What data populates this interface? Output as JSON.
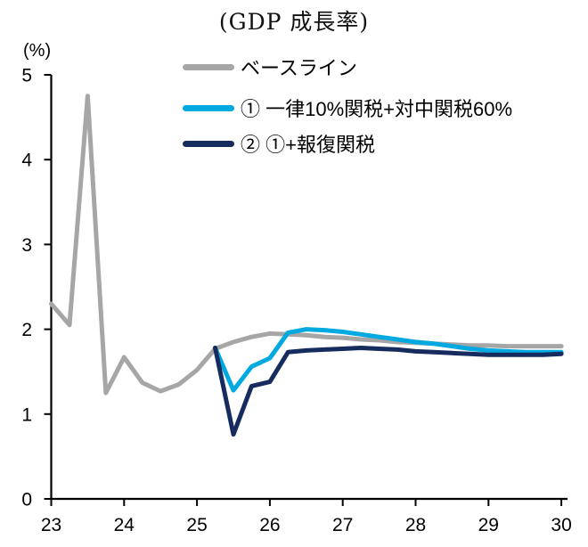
{
  "title": "(GDP 成長率)",
  "y_axis_unit": "(%)",
  "legend": [
    {
      "label": "ベースライン",
      "color": "#A6A6A6"
    },
    {
      "label": "① 一律10%関税+対中関税60%",
      "color": "#00A9E0"
    },
    {
      "label": "② ①+報復関税",
      "color": "#172C5E"
    }
  ],
  "chart_data": {
    "type": "line",
    "title": "(GDP 成長率)",
    "xlabel": "",
    "ylabel": "(%)",
    "xlim": [
      23,
      30
    ],
    "ylim": [
      0,
      5
    ],
    "x_ticks": [
      23,
      24,
      25,
      26,
      27,
      28,
      29,
      30
    ],
    "y_ticks": [
      0,
      1,
      2,
      3,
      4,
      5
    ],
    "grid": false,
    "legend_position": "top-inside",
    "series": [
      {
        "name": "ベースライン",
        "color": "#A6A6A6",
        "x": [
          23.0,
          23.25,
          23.5,
          23.75,
          24.0,
          24.25,
          24.5,
          24.75,
          25.0,
          25.25,
          25.5,
          25.75,
          26.0,
          26.25,
          26.5,
          26.75,
          27.0,
          27.25,
          27.5,
          27.75,
          28.0,
          28.25,
          28.5,
          28.75,
          29.0,
          29.25,
          29.5,
          29.75,
          30.0
        ],
        "values": [
          2.3,
          2.05,
          4.75,
          1.25,
          1.67,
          1.37,
          1.27,
          1.35,
          1.52,
          1.77,
          1.85,
          1.91,
          1.95,
          1.94,
          1.93,
          1.91,
          1.9,
          1.88,
          1.87,
          1.85,
          1.84,
          1.83,
          1.82,
          1.81,
          1.81,
          1.8,
          1.8,
          1.8,
          1.8
        ]
      },
      {
        "name": "① 一律10%関税+対中関税60%",
        "color": "#00A9E0",
        "x": [
          25.25,
          25.5,
          25.75,
          26.0,
          26.25,
          26.5,
          26.75,
          27.0,
          27.25,
          27.5,
          27.75,
          28.0,
          28.25,
          28.5,
          28.75,
          29.0,
          29.25,
          29.5,
          29.75,
          30.0
        ],
        "values": [
          1.78,
          1.28,
          1.56,
          1.66,
          1.96,
          2.0,
          1.99,
          1.97,
          1.94,
          1.91,
          1.88,
          1.85,
          1.83,
          1.8,
          1.77,
          1.75,
          1.74,
          1.73,
          1.73,
          1.73
        ]
      },
      {
        "name": "② ①+報復関税",
        "color": "#172C5E",
        "x": [
          25.25,
          25.5,
          25.75,
          26.0,
          26.25,
          26.5,
          26.75,
          27.0,
          27.25,
          27.5,
          27.75,
          28.0,
          28.25,
          28.5,
          28.75,
          29.0,
          29.25,
          29.5,
          29.75,
          30.0
        ],
        "values": [
          1.78,
          0.76,
          1.33,
          1.38,
          1.73,
          1.75,
          1.76,
          1.77,
          1.78,
          1.77,
          1.76,
          1.74,
          1.73,
          1.72,
          1.71,
          1.7,
          1.7,
          1.7,
          1.7,
          1.71
        ]
      }
    ]
  }
}
